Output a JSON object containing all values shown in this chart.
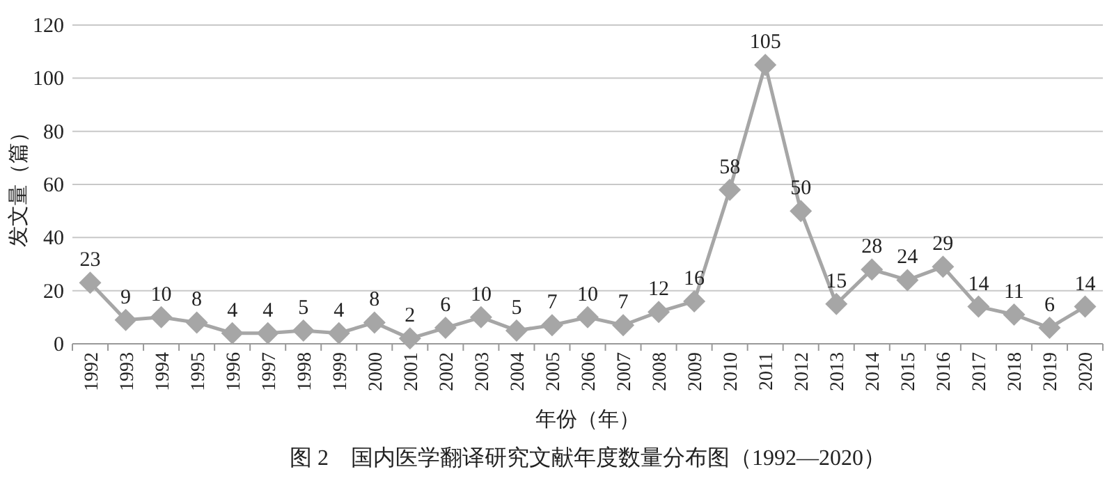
{
  "chart_data": {
    "type": "line",
    "title": "图 2　国内医学翻译研究文献年度数量分布图（1992—2020）",
    "xlabel": "年份（年）",
    "ylabel": "发文量（篇）",
    "categories": [
      "1992",
      "1993",
      "1994",
      "1995",
      "1996",
      "1997",
      "1998",
      "1999",
      "2000",
      "2001",
      "2002",
      "2003",
      "2004",
      "2005",
      "2006",
      "2007",
      "2008",
      "2009",
      "2010",
      "2011",
      "2012",
      "2013",
      "2014",
      "2015",
      "2016",
      "2017",
      "2018",
      "2019",
      "2020"
    ],
    "series": [
      {
        "color": "#a6a6a6",
        "values": [
          23,
          9,
          10,
          8,
          4,
          4,
          5,
          4,
          8,
          2,
          6,
          10,
          5,
          7,
          10,
          7,
          12,
          16,
          58,
          105,
          50,
          15,
          28,
          24,
          29,
          14,
          11,
          6,
          14
        ]
      }
    ],
    "ylim": [
      0,
      120
    ],
    "yticks": [
      0,
      20,
      40,
      60,
      80,
      100,
      120
    ],
    "grid": "y",
    "marker": "diamond",
    "line_style": "solid",
    "data_labels": true
  }
}
